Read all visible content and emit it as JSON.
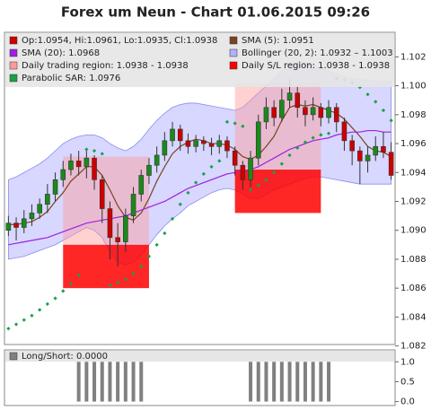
{
  "chart_data": [
    {
      "type": "candlestick",
      "title": "Forex um Neun - Chart 01.06.2015 09:26",
      "ylim": [
        1.0821,
        1.1037
      ],
      "yticks": [
        1.082,
        1.084,
        1.086,
        1.088,
        {
          "value": 1.09,
          "label": "1.090"
        },
        1.092,
        1.094,
        1.096,
        1.098,
        {
          "value": 1.1,
          "label": "1.100"
        },
        1.102
      ],
      "series": [
        {
          "type": "candles",
          "name": "Op:1.0954, Hi:1.0961, Lo:1.0935, Cl:1.0938",
          "color": "#cc0000",
          "up_color": "#1a8a1a",
          "open": [
            1.09,
            1.0905,
            1.0902,
            1.0908,
            1.0912,
            1.0918,
            1.0925,
            1.0935,
            1.0942,
            1.0948,
            1.0944,
            1.095,
            1.0935,
            1.0915,
            1.0895,
            1.0892,
            1.091,
            1.0925,
            1.0938,
            1.0945,
            1.0952,
            1.0962,
            1.097,
            1.0962,
            1.0958,
            1.0962,
            1.096,
            1.0958,
            1.0962,
            1.0955,
            1.0945,
            1.0935,
            1.095,
            1.0975,
            1.0985,
            1.0978,
            1.099,
            1.0995,
            1.0985,
            1.098,
            1.0985,
            1.0978,
            1.0985,
            1.0975,
            1.0962,
            1.0955,
            1.0948,
            1.0952,
            1.0958,
            1.0954
          ],
          "high": [
            1.091,
            1.0909,
            1.0914,
            1.0918,
            1.0922,
            1.0932,
            1.094,
            1.0948,
            1.0953,
            1.0955,
            1.0956,
            1.0952,
            1.0938,
            1.092,
            1.0905,
            1.0915,
            1.093,
            1.0942,
            1.095,
            1.0958,
            1.0968,
            1.0975,
            1.0973,
            1.0967,
            1.0966,
            1.0965,
            1.0964,
            1.0966,
            1.0965,
            1.0958,
            1.0948,
            1.0955,
            1.098,
            1.0992,
            1.099,
            1.0998,
            1.1005,
            1.1,
            1.099,
            1.0992,
            1.0988,
            1.099,
            1.0988,
            1.0978,
            1.0966,
            1.0958,
            1.0958,
            1.0965,
            1.0968,
            1.0961
          ],
          "low": [
            1.0896,
            1.0893,
            1.0898,
            1.0903,
            1.0908,
            1.0912,
            1.092,
            1.093,
            1.0938,
            1.0938,
            1.0936,
            1.0928,
            1.0905,
            1.088,
            1.0875,
            1.0885,
            1.0905,
            1.092,
            1.0932,
            1.094,
            1.0948,
            1.0958,
            1.0955,
            1.0953,
            1.0954,
            1.0955,
            1.0952,
            1.0953,
            1.095,
            1.0938,
            1.0928,
            1.093,
            1.0945,
            1.097,
            1.0972,
            1.0975,
            1.0985,
            1.0978,
            1.0972,
            1.0976,
            1.0972,
            1.0974,
            1.0968,
            1.0955,
            1.0945,
            1.0932,
            1.094,
            1.0948,
            1.095,
            1.0935
          ],
          "close": [
            1.0905,
            1.0902,
            1.0908,
            1.0912,
            1.0918,
            1.0925,
            1.0935,
            1.0942,
            1.0948,
            1.0944,
            1.095,
            1.0935,
            1.0915,
            1.0895,
            1.0892,
            1.091,
            1.0925,
            1.0938,
            1.0945,
            1.0952,
            1.0962,
            1.097,
            1.0962,
            1.0958,
            1.0962,
            1.096,
            1.0958,
            1.0962,
            1.0955,
            1.0945,
            1.0935,
            1.095,
            1.0975,
            1.0985,
            1.0978,
            1.099,
            1.0995,
            1.0985,
            1.098,
            1.0985,
            1.0978,
            1.0985,
            1.0975,
            1.0962,
            1.0955,
            1.0948,
            1.0952,
            1.0958,
            1.0954,
            1.0938
          ]
        },
        {
          "type": "line",
          "name": "SMA (5): 1.0951",
          "color": "#7a4420",
          "values": [
            1.0904,
            1.0904,
            1.0905,
            1.0906,
            1.0909,
            1.0913,
            1.092,
            1.0926,
            1.0934,
            1.0939,
            1.0944,
            1.0944,
            1.0938,
            1.0928,
            1.0917,
            1.0909,
            1.0907,
            1.0912,
            1.0922,
            1.0934,
            1.0944,
            1.0953,
            1.0958,
            1.0961,
            1.0963,
            1.0962,
            1.096,
            1.096,
            1.0959,
            1.0956,
            1.0951,
            1.0949,
            1.0952,
            1.0958,
            1.0965,
            1.0976,
            1.0985,
            1.0987,
            1.0986,
            1.0987,
            1.0985,
            1.0983,
            1.0981,
            1.0977,
            1.0971,
            1.0965,
            1.0958,
            1.0955,
            1.0954,
            1.0951
          ]
        },
        {
          "type": "line",
          "name": "SMA (20): 1.0968",
          "color": "#a020e0",
          "values": [
            1.089,
            1.0891,
            1.0892,
            1.0893,
            1.0894,
            1.0895,
            1.0897,
            1.0899,
            1.0901,
            1.0903,
            1.0905,
            1.0906,
            1.0907,
            1.0908,
            1.0909,
            1.091,
            1.0912,
            1.0914,
            1.0916,
            1.0918,
            1.092,
            1.0923,
            1.0926,
            1.0929,
            1.0931,
            1.0933,
            1.0935,
            1.0937,
            1.0939,
            1.094,
            1.0941,
            1.0942,
            1.0944,
            1.0947,
            1.095,
            1.0953,
            1.0956,
            1.0958,
            1.096,
            1.0962,
            1.0963,
            1.0964,
            1.0966,
            1.0967,
            1.0968,
            1.0968,
            1.0969,
            1.0969,
            1.0968,
            1.0968
          ]
        },
        {
          "type": "band",
          "name": "Bollinger (20, 2): 1.0932 – 1.1003",
          "color": "#b0b0ff",
          "upper": [
            1.0935,
            1.0937,
            1.094,
            1.0943,
            1.0946,
            1.095,
            1.0955,
            1.096,
            1.0963,
            1.0965,
            1.0966,
            1.0966,
            1.0964,
            1.096,
            1.0957,
            1.0955,
            1.0958,
            1.0963,
            1.097,
            1.0976,
            1.0981,
            1.0985,
            1.0987,
            1.0988,
            1.0988,
            1.0987,
            1.0986,
            1.0985,
            1.0984,
            1.0983,
            1.0985,
            1.099,
            1.0995,
            1.1,
            1.1005,
            1.101,
            1.1014,
            1.1016,
            1.1016,
            1.1014,
            1.1012,
            1.101,
            1.1008,
            1.1006,
            1.1005,
            1.1004,
            1.1004,
            1.1003,
            1.1003,
            1.1003
          ],
          "lower": [
            1.088,
            1.0881,
            1.0882,
            1.0884,
            1.0886,
            1.0888,
            1.089,
            1.0893,
            1.0896,
            1.0899,
            1.0902,
            1.09,
            1.0895,
            1.0885,
            1.0878,
            1.0876,
            1.0878,
            1.0883,
            1.089,
            1.0897,
            1.0903,
            1.0908,
            1.0912,
            1.0917,
            1.092,
            1.0923,
            1.0926,
            1.0928,
            1.0929,
            1.0928,
            1.0925,
            1.0922,
            1.0922,
            1.0925,
            1.0928,
            1.093,
            1.0932,
            1.0934,
            1.0936,
            1.0937,
            1.0937,
            1.0936,
            1.0935,
            1.0934,
            1.0933,
            1.0932,
            1.0932,
            1.0932,
            1.0932,
            1.0932
          ]
        },
        {
          "type": "region",
          "name": "Daily trading region: 1.0938 - 1.0938",
          "color": "#ff9a9a",
          "spans": [
            {
              "from": 7,
              "to": 18,
              "low": 1.089,
              "high": 1.0951
            },
            {
              "from": 29,
              "to": 40,
              "low": 1.0942,
              "high": 1.1002
            }
          ]
        },
        {
          "type": "region",
          "name": "Daily S/L region: 1.0938 - 1.0938",
          "color": "#ff0000",
          "spans": [
            {
              "from": 7,
              "to": 18,
              "low": 1.086,
              "high": 1.089
            },
            {
              "from": 29,
              "to": 40,
              "low": 1.0912,
              "high": 1.0942
            }
          ]
        },
        {
          "type": "dots",
          "name": "Parabolic SAR: 1.0976",
          "color": "#1aa04a",
          "values": [
            1.0832,
            1.0835,
            1.0838,
            1.0841,
            1.0845,
            1.0849,
            1.0853,
            1.0858,
            1.0863,
            1.0869,
            1.0956,
            1.0955,
            1.0953,
            1.0862,
            1.0864,
            1.0866,
            1.087,
            1.0875,
            1.0882,
            1.089,
            1.0898,
            1.0908,
            1.0918,
            1.0926,
            1.0933,
            1.0939,
            1.0944,
            1.0948,
            1.0975,
            1.0974,
            1.0972,
            1.0928,
            1.0931,
            1.0935,
            1.094,
            1.0946,
            1.0952,
            1.0957,
            1.0961,
            1.0964,
            1.0966,
            1.0967,
            1.1005,
            1.1004,
            1.1002,
            1.0999,
            1.0994,
            1.0989,
            1.0983,
            1.0976
          ]
        }
      ]
    },
    {
      "type": "bar",
      "ylim": [
        -0.1,
        1.3
      ],
      "yticks": [
        {
          "value": 0,
          "label": "0.0"
        },
        {
          "value": 0.5,
          "label": "0.5"
        },
        {
          "value": 1,
          "label": "1.0"
        }
      ],
      "series": [
        {
          "name": "Long/Short: 0.0000",
          "color": "#808080",
          "values": [
            0,
            0,
            0,
            0,
            0,
            0,
            0,
            0,
            0,
            1,
            1,
            1,
            1,
            1,
            1,
            1,
            1,
            1,
            0,
            0,
            0,
            0,
            0,
            0,
            0,
            0,
            0,
            0,
            0,
            0,
            0,
            1,
            1,
            1,
            1,
            1,
            1,
            1,
            1,
            1,
            1,
            1,
            0,
            0,
            0,
            0,
            0,
            0,
            0,
            0
          ]
        }
      ]
    }
  ]
}
